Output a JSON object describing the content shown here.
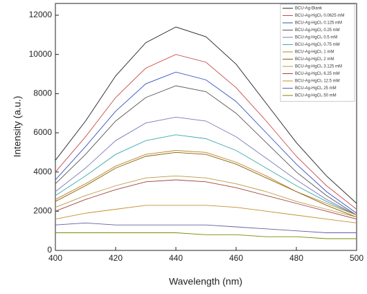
{
  "chart_data": {
    "type": "line",
    "x_label": "Wavelength (nm)",
    "y_label": "Intensity (a.u.)",
    "x": [
      400,
      410,
      420,
      430,
      440,
      450,
      460,
      470,
      480,
      490,
      500
    ],
    "xlim": [
      400,
      500
    ],
    "xticks": [
      400,
      420,
      440,
      460,
      480,
      500
    ],
    "ylim": [
      0,
      12600
    ],
    "yticks": [
      0,
      2000,
      4000,
      6000,
      8000,
      10000,
      12000
    ],
    "legend": "upper right",
    "series": [
      {
        "name": "BCU-Ag-Blank",
        "color": "#222222",
        "values": [
          4600,
          6600,
          8900,
          10600,
          11400,
          10900,
          9500,
          7500,
          5500,
          3800,
          2400
        ]
      },
      {
        "name": "BCU-Ag-HgCl₂ 0.0625 mM",
        "color": "#c84848",
        "values": [
          4000,
          5800,
          7800,
          9300,
          10000,
          9600,
          8300,
          6600,
          4800,
          3300,
          2100
        ]
      },
      {
        "name": "BCU-Ag-HgCl₂ 0.125 mM",
        "color": "#3050c0",
        "values": [
          3600,
          5300,
          7100,
          8500,
          9100,
          8700,
          7600,
          6000,
          4400,
          3000,
          1900
        ]
      },
      {
        "name": "BCU-Ag-HgCl₂ 0.25 mM",
        "color": "#555555",
        "values": [
          3400,
          4900,
          6600,
          7800,
          8400,
          8100,
          7000,
          5500,
          4000,
          2800,
          1800
        ]
      },
      {
        "name": "BCU-Ag-HgCl₂ 0.5 mM",
        "color": "#7a7ab8",
        "values": [
          3000,
          4200,
          5600,
          6500,
          6800,
          6600,
          5800,
          4700,
          3600,
          2600,
          1800
        ]
      },
      {
        "name": "BCU-Ag-HgCl₂ 0.75 mM",
        "color": "#3aa8b0",
        "values": [
          2800,
          3800,
          4900,
          5600,
          5900,
          5700,
          5100,
          4200,
          3300,
          2500,
          1800
        ]
      },
      {
        "name": "BCU-Ag-HgCl₂ 1 mM",
        "color": "#c08020",
        "values": [
          2600,
          3400,
          4300,
          4900,
          5100,
          5000,
          4500,
          3800,
          3000,
          2400,
          1800
        ]
      },
      {
        "name": "BCU-Ag-HgCl₂ 2 mM",
        "color": "#806000",
        "values": [
          2500,
          3300,
          4200,
          4800,
          5000,
          4900,
          4400,
          3700,
          3000,
          2300,
          1700
        ]
      },
      {
        "name": "BCU-Ag-HgCl₂ 3.125 mM",
        "color": "#b89a40",
        "values": [
          2200,
          2800,
          3300,
          3700,
          3800,
          3700,
          3400,
          3000,
          2500,
          2100,
          1700
        ]
      },
      {
        "name": "BCU-Ag-HgCl₂ 6.25 mM",
        "color": "#a04040",
        "values": [
          2000,
          2600,
          3100,
          3500,
          3600,
          3500,
          3200,
          2800,
          2400,
          2000,
          1600
        ]
      },
      {
        "name": "BCU-Ag-HgCl₂ 12.5 mM",
        "color": "#c09030",
        "values": [
          1600,
          1900,
          2100,
          2300,
          2300,
          2300,
          2200,
          2000,
          1800,
          1600,
          1400
        ]
      },
      {
        "name": "BCU-Ag-HgCl₂ 25 mM",
        "color": "#6060a0",
        "values": [
          1300,
          1400,
          1300,
          1300,
          1300,
          1300,
          1200,
          1100,
          1000,
          900,
          900
        ]
      },
      {
        "name": "BCU-Ag-HgCl₂ 50 mM",
        "color": "#7a8a00",
        "values": [
          900,
          900,
          900,
          900,
          900,
          800,
          800,
          700,
          700,
          600,
          600
        ]
      }
    ]
  }
}
